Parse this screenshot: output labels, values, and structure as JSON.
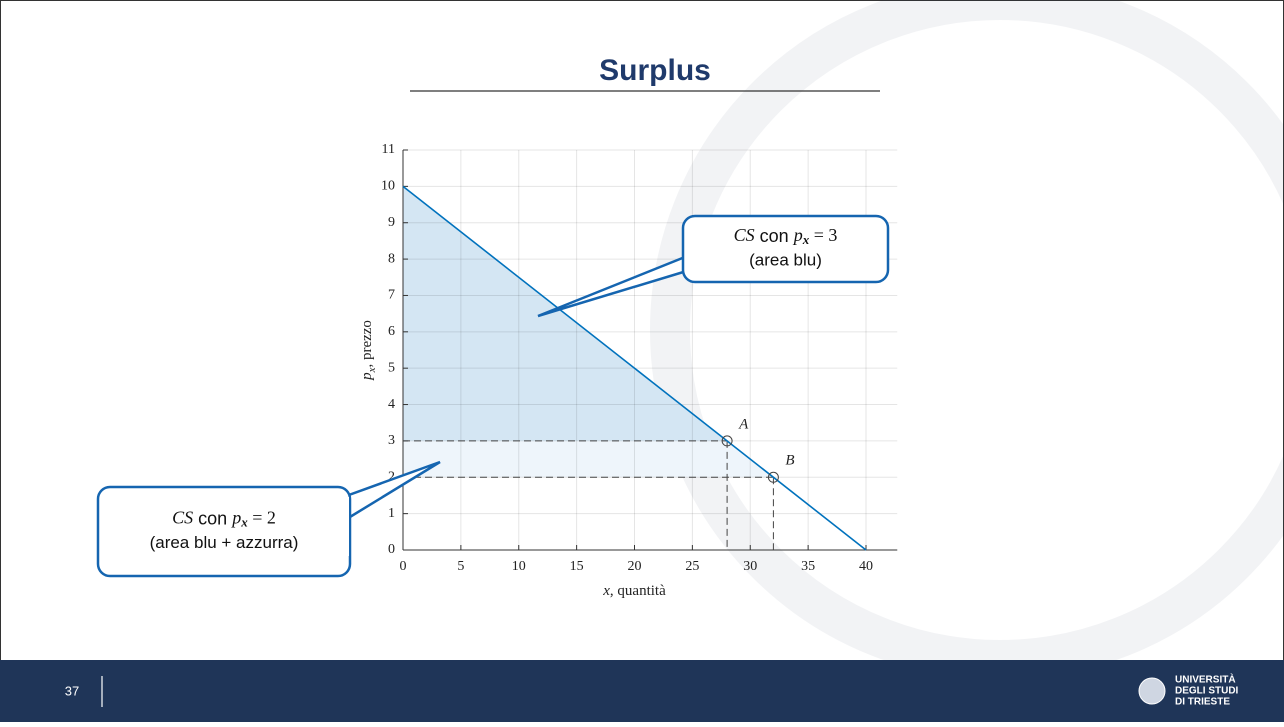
{
  "slide": {
    "title": "Surplus",
    "page_number": "37",
    "logo": [
      "UNIVERSITÀ",
      "DEGLI STUDI",
      "DI TRIESTE"
    ]
  },
  "chart_data": {
    "type": "line",
    "x": [
      0,
      40
    ],
    "series": [
      {
        "color": "#0072bd",
        "values": [
          10,
          0
        ]
      }
    ],
    "xlim": [
      0,
      42.7
    ],
    "ylim": [
      0,
      11
    ],
    "xticks": [
      0,
      5,
      10,
      15,
      20,
      25,
      30,
      35,
      40
    ],
    "yticks": [
      0,
      1,
      2,
      3,
      4,
      5,
      6,
      7,
      8,
      9,
      10,
      11
    ],
    "grid": true,
    "xlabel_var": "x",
    "xlabel_text": ", quantità",
    "ylabel_var": "p",
    "ylabel_sub": "x",
    "ylabel_text": ", prezzo",
    "points": [
      {
        "label": "A",
        "x": 28,
        "y": 3
      },
      {
        "label": "B",
        "x": 32,
        "y": 2
      }
    ],
    "fill_colors": [
      "#d4e6f3",
      "#eef5fb"
    ],
    "callouts": [
      {
        "head": "CS",
        "mid": " con ",
        "var": "p",
        "sub": "x",
        "eq": " = 3",
        "note": "(area blu)"
      },
      {
        "head": "CS",
        "mid": " con ",
        "var": "p",
        "sub": "x",
        "eq": " = 2",
        "note": "(area blu + azzurra)"
      }
    ]
  }
}
